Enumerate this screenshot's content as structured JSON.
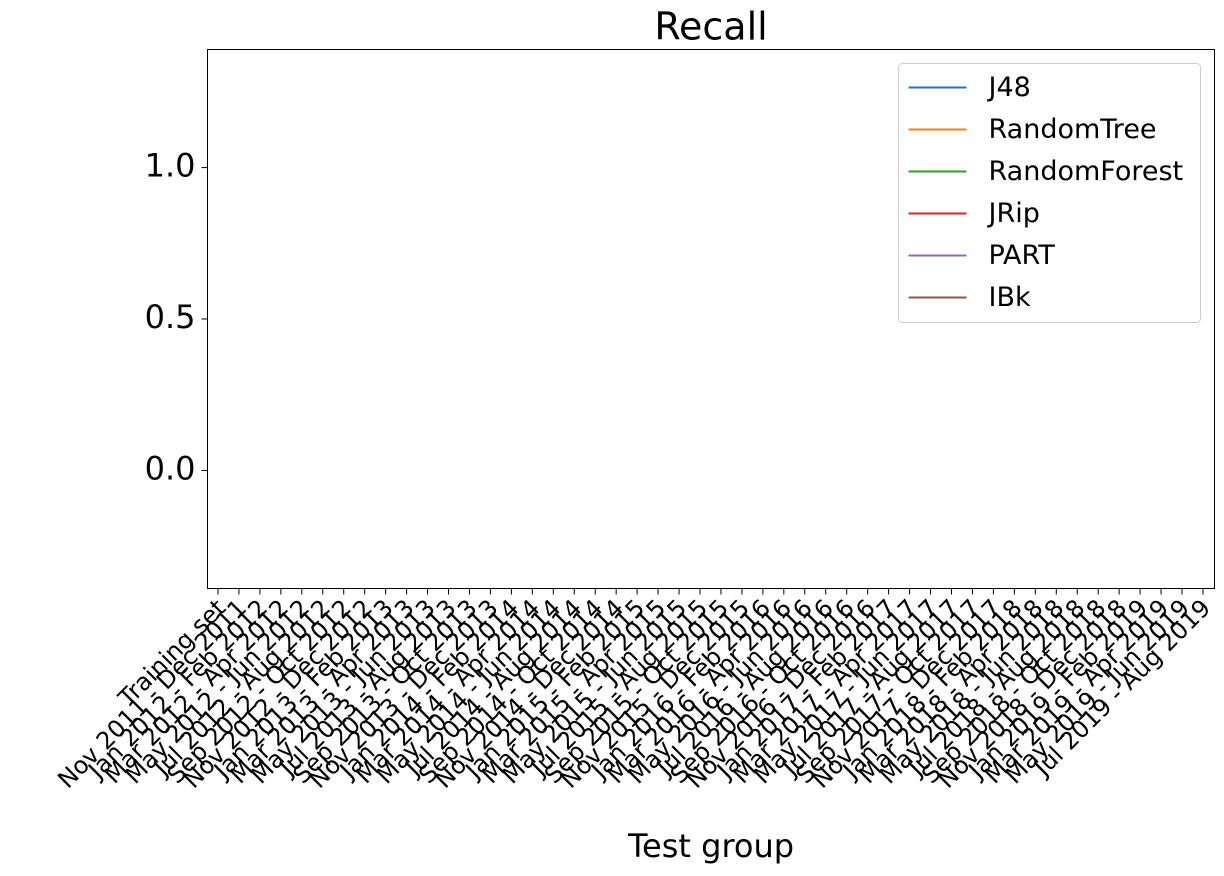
{
  "chart_data": {
    "type": "line",
    "title": "Recall",
    "x_label": "Test group",
    "categories": [
      "Training set",
      "Nov 2011 - Dec 2011",
      "Jan 2012 - Feb 2012",
      "Mar 2012 - Apr 2012",
      "May 2012 - Jun 2012",
      "Jul 2012 - Aug 2012",
      "Sep 2012 - Oct 2012",
      "Nov 2012 - Dec 2012",
      "Jan 2013 - Feb 2013",
      "Mar 2013 - Apr 2013",
      "May 2013 - Jun 2013",
      "Jul 2013 - Aug 2013",
      "Sep 2013 - Oct 2013",
      "Nov 2013 - Dec 2013",
      "Jan 2014 - Feb 2014",
      "Mar 2014 - Apr 2014",
      "May 2014 - Jun 2014",
      "Jul 2014 - Aug 2014",
      "Sep 2014 - Oct 2014",
      "Nov 2014 - Dec 2014",
      "Jan 2015 - Feb 2015",
      "Mar 2015 - Apr 2015",
      "May 2015 - Jun 2015",
      "Jul 2015 - Aug 2015",
      "Sep 2015 - Oct 2015",
      "Nov 2015 - Dec 2015",
      "Jan 2016 - Feb 2016",
      "Mar 2016 - Apr 2016",
      "May 2016 - Jun 2016",
      "Jul 2016 - Aug 2016",
      "Sep 2016 - Oct 2016",
      "Nov 2016 - Dec 2016",
      "Jan 2017 - Feb 2017",
      "Mar 2017 - Apr 2017",
      "May 2017 - Jun 2017",
      "Jul 2017 - Aug 2017",
      "Sep 2017 - Oct 2017",
      "Nov 2017 - Dec 2017",
      "Jan 2018 - Feb 2018",
      "Mar 2018 - Apr 2018",
      "May 2018 - Jun 2018",
      "Jul 2018 - Aug 2018",
      "Sep 2018 - Oct 2018",
      "Nov 2018 - Dec 2018",
      "Jan 2019 - Feb 2019",
      "Mar 2019 - Apr 2019",
      "May 2019 - Jun 2019",
      "Jul 2019 - Aug 2019"
    ],
    "series": [
      {
        "name": "J48",
        "color": "#1f77b4",
        "values": [
          null,
          null,
          null,
          null,
          null,
          null,
          null,
          null,
          null,
          null,
          null,
          null,
          null,
          null,
          null,
          null,
          null,
          null,
          null,
          null,
          null,
          null,
          null,
          null,
          null,
          null,
          null,
          null,
          null,
          null,
          null,
          null,
          null,
          null,
          null,
          null,
          null,
          null,
          null,
          null,
          null,
          null,
          null,
          null,
          null,
          null,
          null,
          null
        ]
      },
      {
        "name": "RandomTree",
        "color": "#ff7f0e",
        "values": [
          null,
          null,
          null,
          null,
          null,
          null,
          null,
          null,
          null,
          null,
          null,
          null,
          null,
          null,
          null,
          null,
          null,
          null,
          null,
          null,
          null,
          null,
          null,
          null,
          null,
          null,
          null,
          null,
          null,
          null,
          null,
          null,
          null,
          null,
          null,
          null,
          null,
          null,
          null,
          null,
          null,
          null,
          null,
          null,
          null,
          null,
          null,
          null
        ]
      },
      {
        "name": "RandomForest",
        "color": "#2ca02c",
        "values": [
          null,
          null,
          null,
          null,
          null,
          null,
          null,
          null,
          null,
          null,
          null,
          null,
          null,
          null,
          null,
          null,
          null,
          null,
          null,
          null,
          null,
          null,
          null,
          null,
          null,
          null,
          null,
          null,
          null,
          null,
          null,
          null,
          null,
          null,
          null,
          null,
          null,
          null,
          null,
          null,
          null,
          null,
          null,
          null,
          null,
          null,
          null,
          null
        ]
      },
      {
        "name": "JRip",
        "color": "#d62728",
        "values": [
          null,
          null,
          null,
          null,
          null,
          null,
          null,
          null,
          null,
          null,
          null,
          null,
          null,
          null,
          null,
          null,
          null,
          null,
          null,
          null,
          null,
          null,
          null,
          null,
          null,
          null,
          null,
          null,
          null,
          null,
          null,
          null,
          null,
          null,
          null,
          null,
          null,
          null,
          null,
          null,
          null,
          null,
          null,
          null,
          null,
          null,
          null,
          null
        ]
      },
      {
        "name": "PART",
        "color": "#9467bd",
        "values": [
          null,
          null,
          null,
          null,
          null,
          null,
          null,
          null,
          null,
          null,
          null,
          null,
          null,
          null,
          null,
          null,
          null,
          null,
          null,
          null,
          null,
          null,
          null,
          null,
          null,
          null,
          null,
          null,
          null,
          null,
          null,
          null,
          null,
          null,
          null,
          null,
          null,
          null,
          null,
          null,
          null,
          null,
          null,
          null,
          null,
          null,
          null,
          null
        ]
      },
      {
        "name": "IBk",
        "color": "#8c564b",
        "values": [
          null,
          null,
          null,
          null,
          null,
          null,
          null,
          null,
          null,
          null,
          null,
          null,
          null,
          null,
          null,
          null,
          null,
          null,
          null,
          null,
          null,
          null,
          null,
          null,
          null,
          null,
          null,
          null,
          null,
          null,
          null,
          null,
          null,
          null,
          null,
          null,
          null,
          null,
          null,
          null,
          null,
          null,
          null,
          null,
          null,
          null,
          null,
          null
        ]
      }
    ],
    "ylim": [
      -0.39,
      1.39
    ],
    "yticks": [
      {
        "value": 0,
        "label": "0.0"
      },
      {
        "value": 0.5,
        "label": "0.5"
      },
      {
        "value": 1,
        "label": "1.0"
      }
    ],
    "legend": "upper right"
  }
}
